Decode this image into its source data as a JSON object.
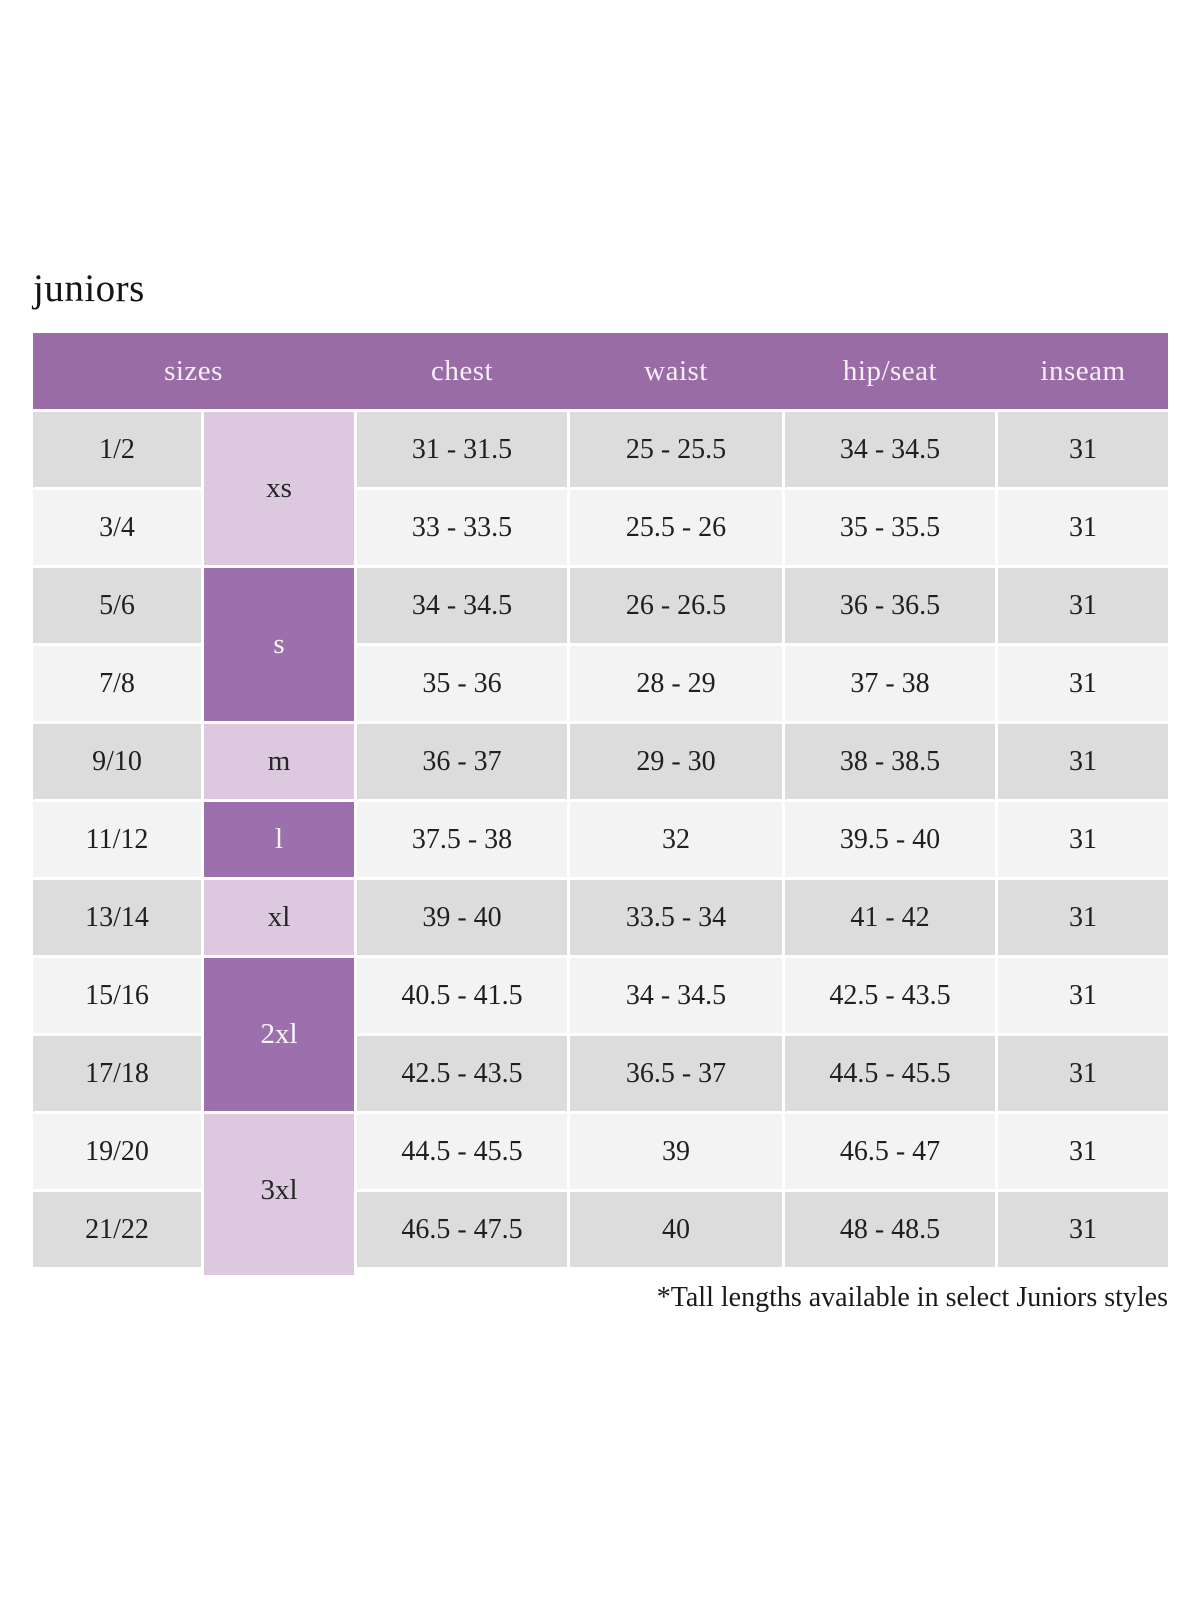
{
  "page": {
    "title": "juniors",
    "footnote": "*Tall lengths available in select Juniors styles"
  },
  "colors": {
    "header_bg": "#9a6ca6",
    "header_text": "#f6eff7",
    "size_dark_bg": "#9c70ad",
    "size_dark_text": "#fbf8fc",
    "size_light_bg": "#dcc9e0",
    "size_light_text": "#262626",
    "row_gray": "#dcdcdc",
    "row_light": "#f3f3f3",
    "body_text": "#1f1f1f"
  },
  "table": {
    "headers": [
      "sizes",
      "chest",
      "waist",
      "hip/seat",
      "inseam"
    ],
    "size_groups": [
      {
        "label": "xs",
        "span": 2,
        "shade": "light"
      },
      {
        "label": "s",
        "span": 2,
        "shade": "dark"
      },
      {
        "label": "m",
        "span": 1,
        "shade": "light"
      },
      {
        "label": "l",
        "span": 1,
        "shade": "dark"
      },
      {
        "label": "xl",
        "span": 1,
        "shade": "light"
      },
      {
        "label": "2xl",
        "span": 2,
        "shade": "dark"
      },
      {
        "label": "3xl",
        "span": 2,
        "shade": "light"
      }
    ],
    "rows": [
      {
        "size": "1/2",
        "chest": "31 - 31.5",
        "waist": "25 - 25.5",
        "hip_seat": "34 - 34.5",
        "inseam": "31"
      },
      {
        "size": "3/4",
        "chest": "33 - 33.5",
        "waist": "25.5 - 26",
        "hip_seat": "35 - 35.5",
        "inseam": "31"
      },
      {
        "size": "5/6",
        "chest": "34 - 34.5",
        "waist": "26 - 26.5",
        "hip_seat": "36 - 36.5",
        "inseam": "31"
      },
      {
        "size": "7/8",
        "chest": "35 - 36",
        "waist": "28 - 29",
        "hip_seat": "37 - 38",
        "inseam": "31"
      },
      {
        "size": "9/10",
        "chest": "36 - 37",
        "waist": "29 - 30",
        "hip_seat": "38 - 38.5",
        "inseam": "31"
      },
      {
        "size": "11/12",
        "chest": "37.5 - 38",
        "waist": "32",
        "hip_seat": "39.5 - 40",
        "inseam": "31"
      },
      {
        "size": "13/14",
        "chest": "39 - 40",
        "waist": "33.5 - 34",
        "hip_seat": "41 - 42",
        "inseam": "31"
      },
      {
        "size": "15/16",
        "chest": "40.5 - 41.5",
        "waist": "34 - 34.5",
        "hip_seat": "42.5 - 43.5",
        "inseam": "31"
      },
      {
        "size": "17/18",
        "chest": "42.5 - 43.5",
        "waist": "36.5 - 37",
        "hip_seat": "44.5 - 45.5",
        "inseam": "31"
      },
      {
        "size": "19/20",
        "chest": "44.5 - 45.5",
        "waist": "39",
        "hip_seat": "46.5 - 47",
        "inseam": "31"
      },
      {
        "size": "21/22",
        "chest": "46.5 - 47.5",
        "waist": "40",
        "hip_seat": "48 - 48.5",
        "inseam": "31"
      }
    ]
  }
}
